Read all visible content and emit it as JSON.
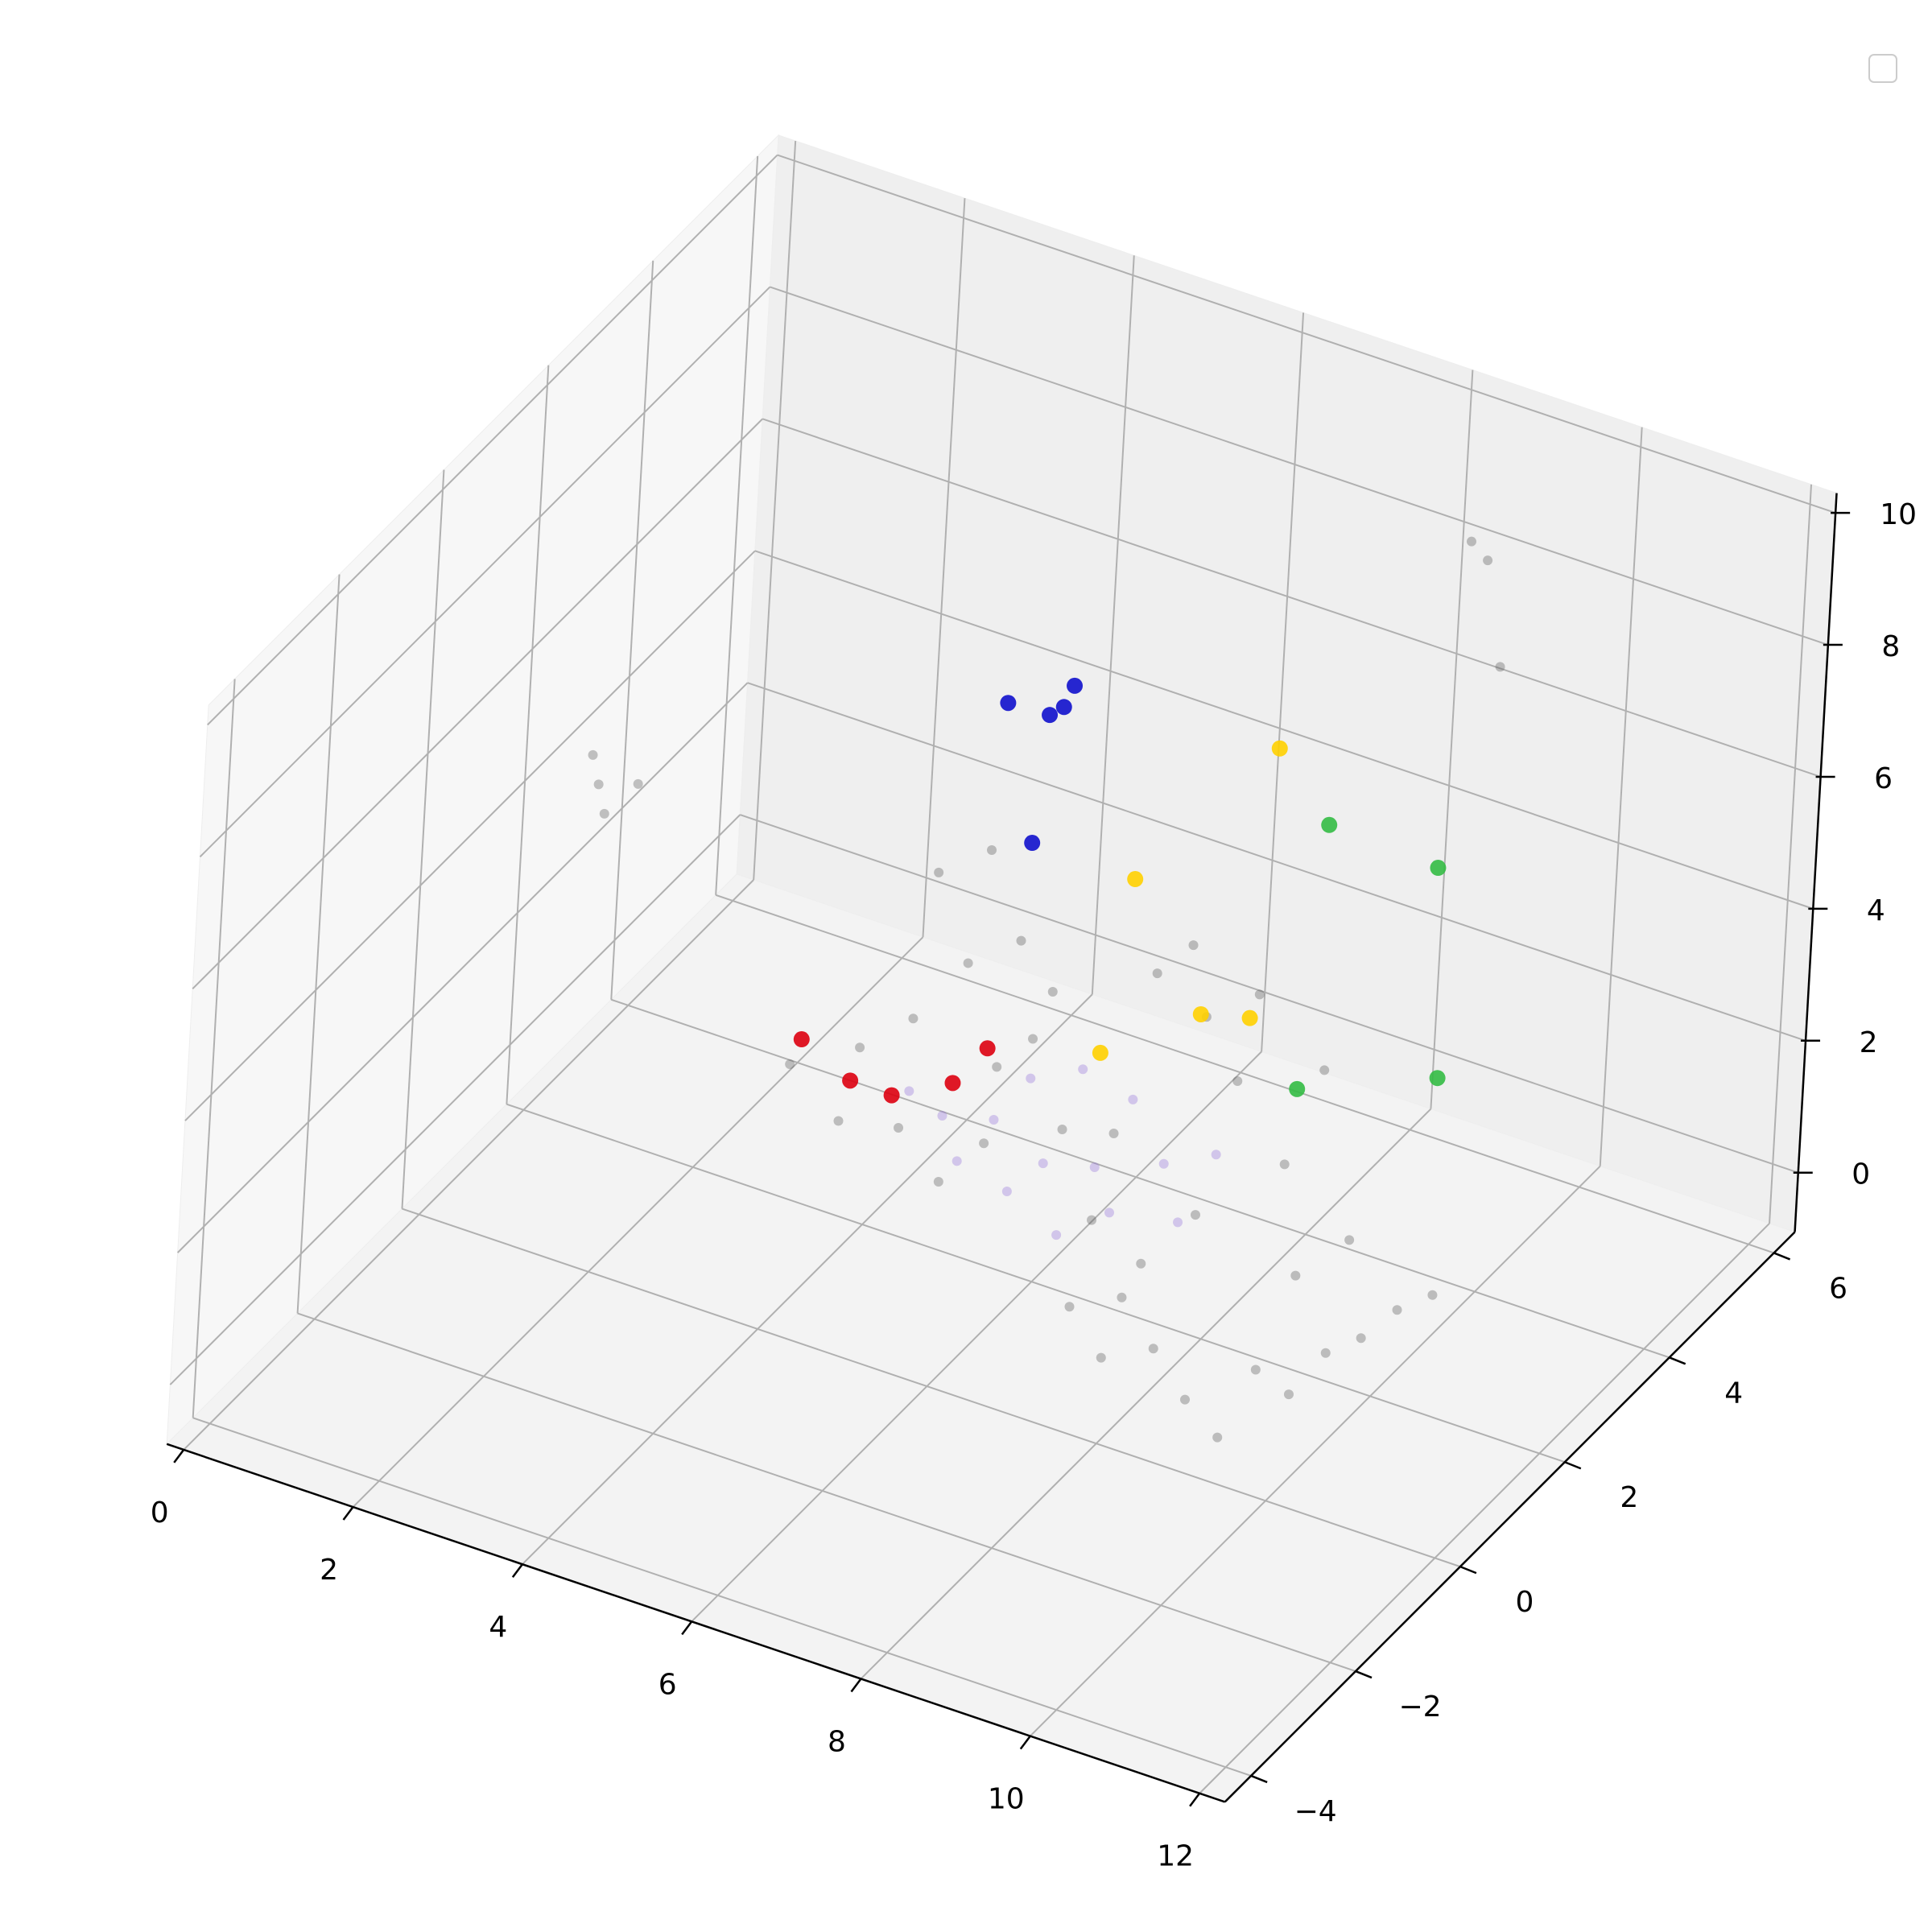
{
  "chart_data": {
    "type": "scatter3d",
    "xlim": [
      -0.2,
      12.3
    ],
    "ylim": [
      -4.5,
      6.4
    ],
    "zlim": [
      -0.9,
      10.3
    ],
    "xticks": [
      0,
      2,
      4,
      6,
      8,
      10,
      12
    ],
    "yticks": [
      {
        "value": -4,
        "label": "−4"
      },
      {
        "value": -2,
        "label": "−2"
      },
      0,
      2,
      4,
      6
    ],
    "zticks": [
      0,
      2,
      4,
      6,
      8,
      10
    ],
    "grid": true,
    "series": [
      {
        "color": "#555555",
        "alpha": 0.35,
        "size": 6,
        "x": [
          1.8,
          1.6,
          2.0,
          2.2,
          8.9,
          9.1,
          9.6,
          4.2,
          4.8,
          5.5,
          6.0,
          6.5,
          5.0,
          5.6,
          6.2,
          5.8,
          6.4,
          6.8,
          7.0,
          7.4,
          7.8,
          8.2,
          8.6,
          9.0,
          9.4,
          8.0,
          7.6,
          9.8,
          10.2,
          10.6,
          11.0,
          11.4,
          11.8,
          10.8,
          10.0,
          9.4,
          9.0,
          8.4,
          8.8,
          9.6,
          10.4,
          7.2,
          6.6,
          8.0,
          9.0,
          8.4,
          10.2
        ],
        "y": [
          0,
          0.2,
          -0.2,
          0.1,
          5,
          5,
          4.5,
          0,
          0,
          0,
          0,
          0,
          0,
          0,
          0,
          0,
          0,
          0,
          0,
          0,
          0,
          0,
          0,
          0,
          0,
          0,
          0,
          0,
          0,
          0,
          0,
          0,
          0,
          0,
          0,
          0,
          0,
          0,
          0,
          0,
          0,
          0,
          0,
          0,
          0,
          0,
          0
        ],
        "z": [
          6.4,
          6.6,
          6.2,
          6.5,
          9.2,
          9.0,
          8.0,
          3.2,
          2.6,
          2.8,
          2.2,
          3.0,
          3.8,
          4.5,
          5.6,
          6.8,
          7.4,
          6.2,
          4.8,
          3.6,
          2.4,
          1.4,
          0.8,
          0.2,
          -0.2,
          0.4,
          1.0,
          1.0,
          0.8,
          1.6,
          2.0,
          2.6,
          3.0,
          3.4,
          4.2,
          5.2,
          6.0,
          6.4,
          7.0,
          6.6,
          5.8,
          5.6,
          4.2,
          3.8,
          3.0,
          2.0,
          2.6
        ]
      },
      {
        "color": "#9370db",
        "alpha": 0.35,
        "size": 6,
        "x": [
          6.0,
          6.6,
          7.2,
          7.8,
          8.6,
          7.0,
          7.6,
          8.2,
          6.8,
          7.4,
          8.0,
          9.2,
          5.6,
          6.2,
          8.8
        ],
        "y": [
          0,
          0,
          0,
          0,
          0,
          0,
          0,
          0,
          0,
          0,
          0,
          0,
          0,
          0,
          0
        ],
        "z": [
          3.2,
          3.4,
          3.0,
          3.2,
          3.6,
          4.2,
          4.6,
          4.4,
          2.4,
          2.0,
          2.6,
          4.0,
          3.4,
          2.6,
          2.8
        ]
      },
      {
        "color": "#1010cc",
        "alpha": 0.9,
        "size": 10,
        "x": [
          5.35,
          5.84,
          6.0,
          6.11,
          5.72
        ],
        "y": [
          2,
          2,
          2,
          2,
          2
        ],
        "z": [
          7.59,
          7.62,
          7.81,
          8.18,
          5.63
        ]
      },
      {
        "color": "#ffd000",
        "alpha": 0.9,
        "size": 10,
        "x": [
          9.1,
          7.51,
          8.36,
          8.93,
          7.22
        ],
        "y": [
          1,
          1,
          1,
          1,
          1
        ],
        "z": [
          9.32,
          6.65,
          4.97,
          5.16,
          3.89
        ]
      },
      {
        "color": "#dd0010",
        "alpha": 0.9,
        "size": 10,
        "x": [
          4.32,
          4.91,
          5.4,
          6.48,
          6.1
        ],
        "y": [
          0,
          0,
          0,
          0,
          0
        ],
        "z": [
          3.63,
          3.26,
          3.25,
          4.43,
          3.74
        ]
      },
      {
        "color": "#33bb44",
        "alpha": 0.9,
        "size": 10,
        "x": [
          8.58,
          9.87,
          8.38,
          10.0
        ],
        "y": [
          3,
          3,
          3,
          3
        ],
        "z": [
          6.35,
          6.26,
          2.26,
          3.13
        ]
      }
    ]
  }
}
